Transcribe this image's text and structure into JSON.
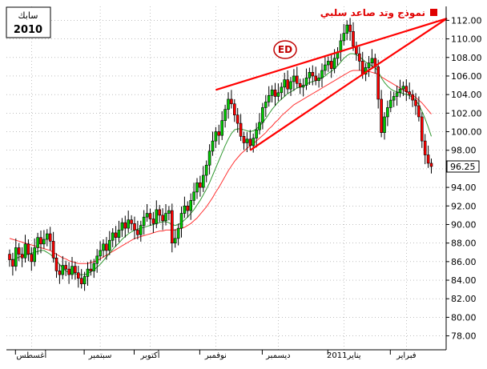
{
  "badge": {
    "label": "سابك",
    "year": "2010"
  },
  "legend": {
    "label": "نموذج وتد صاعد سلبي",
    "color": "#e00000"
  },
  "logo": {
    "text": "ED"
  },
  "colors": {
    "up": "#00cc00",
    "down": "#ff0000",
    "ma_short": "#339933",
    "ma_long": "#ff3333",
    "trend": "#ff0000",
    "grid": "#999999"
  },
  "chart_data": {
    "type": "candlestick",
    "ylim": [
      76.5,
      113.5
    ],
    "y_ticks": [
      78,
      80,
      82,
      84,
      86,
      88,
      90,
      92,
      94,
      96,
      98,
      100,
      102,
      104,
      106,
      108,
      110,
      112
    ],
    "y_tick_labels": [
      "78.00",
      "80.00",
      "82.00",
      "84.00",
      "86.00",
      "88.00",
      "90.00",
      "92.00",
      "94.00",
      "96.00",
      "98.00",
      "100.00",
      "102.00",
      "104.00",
      "106.00",
      "108.00",
      "110.00",
      "112.00"
    ],
    "last_price": "96.25",
    "x_labels": [
      {
        "label": "أغسطس",
        "index": 7
      },
      {
        "label": "سبتمبر",
        "index": 29
      },
      {
        "label": "أكتوبر",
        "index": 45
      },
      {
        "label": "نوفمبر",
        "index": 66
      },
      {
        "label": "ديسمبر",
        "index": 86
      },
      {
        "label": "يناير2011",
        "index": 107
      },
      {
        "label": "فبراير",
        "index": 127
      }
    ],
    "close": [
      86.2,
      85.5,
      87.5,
      86.8,
      86.4,
      87.9,
      86.8,
      86.0,
      87.5,
      88.6,
      87.9,
      88.4,
      89.0,
      88.2,
      86.4,
      85.0,
      84.6,
      85.6,
      85.2,
      84.6,
      85.5,
      84.8,
      84.2,
      83.6,
      84.4,
      85.2,
      85.0,
      85.8,
      86.6,
      87.2,
      87.9,
      87.2,
      88.3,
      89.1,
      88.6,
      89.4,
      90.2,
      89.6,
      90.5,
      90.1,
      89.4,
      88.9,
      89.9,
      90.8,
      91.2,
      90.6,
      90.1,
      91.6,
      91.0,
      90.4,
      91.2,
      91.5,
      88.0,
      88.5,
      89.6,
      91.2,
      92.0,
      91.5,
      92.6,
      93.5,
      94.5,
      94.0,
      95.3,
      96.4,
      97.9,
      99.0,
      100.0,
      99.6,
      101.2,
      102.4,
      103.5,
      103.0,
      101.8,
      100.9,
      99.5,
      98.8,
      99.2,
      98.5,
      99.3,
      100.2,
      101.0,
      102.6,
      103.2,
      103.9,
      104.5,
      103.8,
      104.2,
      104.8,
      105.6,
      104.6,
      105.4,
      106.0,
      105.2,
      104.8,
      105.0,
      105.8,
      106.4,
      106.0,
      105.5,
      105.8,
      106.6,
      107.2,
      107.6,
      106.8,
      107.9,
      108.6,
      109.8,
      110.6,
      111.5,
      110.8,
      109.2,
      108.4,
      107.6,
      106.2,
      106.9,
      107.4,
      107.9,
      107.0,
      103.5,
      99.9,
      101.6,
      102.6,
      103.4,
      103.8,
      104.2,
      104.6,
      104.9,
      104.3,
      104.0,
      103.4,
      102.8,
      101.6,
      99.0,
      97.5,
      96.6,
      96.25
    ],
    "ma_short": [
      86.3,
      86.2,
      86.3,
      86.5,
      86.6,
      86.7,
      86.8,
      86.9,
      87.0,
      87.1,
      87.2,
      87.2,
      87.0,
      86.8,
      86.5,
      86.1,
      85.7,
      85.3,
      85.0,
      84.8,
      84.7,
      84.7,
      84.6,
      84.6,
      84.6,
      84.7,
      84.9,
      85.1,
      85.4,
      85.7,
      86.1,
      86.5,
      86.9,
      87.3,
      87.7,
      88.0,
      88.4,
      88.7,
      89.0,
      89.2,
      89.4,
      89.5,
      89.6,
      89.7,
      89.8,
      89.9,
      90.0,
      90.1,
      90.2,
      90.3,
      90.3,
      90.2,
      90.0,
      89.9,
      90.0,
      90.2,
      90.5,
      90.8,
      91.2,
      91.6,
      92.1,
      92.6,
      93.2,
      93.8,
      94.5,
      95.3,
      96.1,
      96.9,
      97.7,
      98.5,
      99.2,
      99.8,
      100.2,
      100.3,
      100.3,
      100.2,
      100.1,
      100.0,
      100.1,
      100.3,
      100.6,
      101.0,
      101.4,
      101.9,
      102.4,
      102.8,
      103.2,
      103.5,
      103.8,
      104.1,
      104.3,
      104.5,
      104.7,
      104.8,
      104.9,
      105.1,
      105.3,
      105.4,
      105.5,
      105.6,
      105.8,
      106.0,
      106.3,
      106.5,
      106.8,
      107.1,
      107.5,
      107.9,
      108.2,
      108.4,
      108.4,
      108.3,
      108.1,
      107.8,
      107.5,
      107.3,
      107.1,
      106.9,
      106.5,
      105.8,
      105.3,
      104.9,
      104.6,
      104.4,
      104.3,
      104.2,
      104.1,
      104.0,
      103.9,
      103.7,
      103.4,
      102.9,
      102.2,
      101.4,
      100.5,
      99.5
    ],
    "ma_long": [
      88.5,
      88.4,
      88.3,
      88.2,
      88.1,
      88.0,
      87.9,
      87.8,
      87.7,
      87.6,
      87.5,
      87.4,
      87.3,
      87.2,
      87.0,
      86.8,
      86.6,
      86.4,
      86.3,
      86.1,
      86.0,
      85.9,
      85.8,
      85.8,
      85.8,
      85.8,
      85.9,
      86.0,
      86.1,
      86.3,
      86.5,
      86.7,
      86.9,
      87.1,
      87.3,
      87.5,
      87.7,
      87.9,
      88.1,
      88.3,
      88.5,
      88.6,
      88.7,
      88.8,
      88.9,
      89.0,
      89.1,
      89.2,
      89.3,
      89.3,
      89.4,
      89.4,
      89.4,
      89.4,
      89.5,
      89.6,
      89.7,
      89.9,
      90.1,
      90.4,
      90.7,
      91.1,
      91.5,
      91.9,
      92.4,
      92.9,
      93.5,
      94.0,
      94.6,
      95.2,
      95.8,
      96.3,
      96.8,
      97.2,
      97.6,
      97.9,
      98.2,
      98.5,
      98.7,
      99.0,
      99.3,
      99.6,
      99.9,
      100.3,
      100.6,
      101.0,
      101.3,
      101.7,
      102.0,
      102.3,
      102.6,
      102.9,
      103.1,
      103.3,
      103.5,
      103.7,
      103.9,
      104.1,
      104.3,
      104.5,
      104.7,
      104.9,
      105.1,
      105.3,
      105.5,
      105.7,
      105.9,
      106.1,
      106.3,
      106.5,
      106.6,
      106.6,
      106.6,
      106.6,
      106.5,
      106.5,
      106.4,
      106.3,
      106.2,
      105.9,
      105.7,
      105.5,
      105.3,
      105.1,
      104.9,
      104.7,
      104.5,
      104.3,
      104.1,
      103.9,
      103.7,
      103.4,
      103.1,
      102.7,
      102.3,
      101.9
    ],
    "trend_lines": [
      {
        "from": [
          66,
          104.5
        ],
        "to": [
          140,
          112.2
        ]
      },
      {
        "from": [
          77,
          98.0
        ],
        "to": [
          110,
          105.5
        ]
      },
      {
        "from": [
          110,
          105.5
        ],
        "to": [
          140,
          112.2
        ]
      }
    ]
  }
}
